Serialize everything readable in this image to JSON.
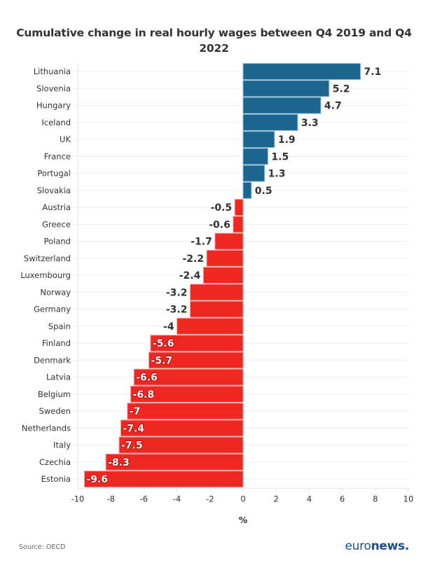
{
  "chart_data": {
    "type": "bar",
    "orientation": "horizontal",
    "title": "Cumulative change in real hourly wages between Q4 2019 and Q4 2022",
    "xlabel": "%",
    "ylabel": "",
    "xlim": [
      -10,
      10
    ],
    "xticks": [
      -10,
      -8,
      -6,
      -4,
      -2,
      0,
      2,
      4,
      6,
      8,
      10
    ],
    "grid": "horizontal",
    "legend": "none",
    "colors": {
      "positive": "#1b6690",
      "negative": "#ee2722",
      "positive_outline": "#8fb6cf",
      "negative_outline": "#f7a09d"
    },
    "categories": [
      "Lithuania",
      "Slovenia",
      "Hungary",
      "Iceland",
      "UK",
      "France",
      "Portugal",
      "Slovakia",
      "Austria",
      "Greece",
      "Poland",
      "Switzerland",
      "Luxembourg",
      "Norway",
      "Germany",
      "Spain",
      "Finland",
      "Denmark",
      "Latvia",
      "Belgium",
      "Sweden",
      "Netherlands",
      "Italy",
      "Czechia",
      "Estonia"
    ],
    "values": [
      7.1,
      5.2,
      4.7,
      3.3,
      1.9,
      1.5,
      1.3,
      0.5,
      -0.5,
      -0.6,
      -1.7,
      -2.2,
      -2.4,
      -3.2,
      -3.2,
      -4,
      -5.6,
      -5.7,
      -6.6,
      -6.8,
      -7,
      -7.4,
      -7.5,
      -8.3,
      -9.6
    ],
    "source": "Source: OECD"
  },
  "brand": {
    "logo_light": "euro",
    "logo_bold": "news",
    "logo_dot": ".",
    "logo_color": "#1b4f8c"
  }
}
